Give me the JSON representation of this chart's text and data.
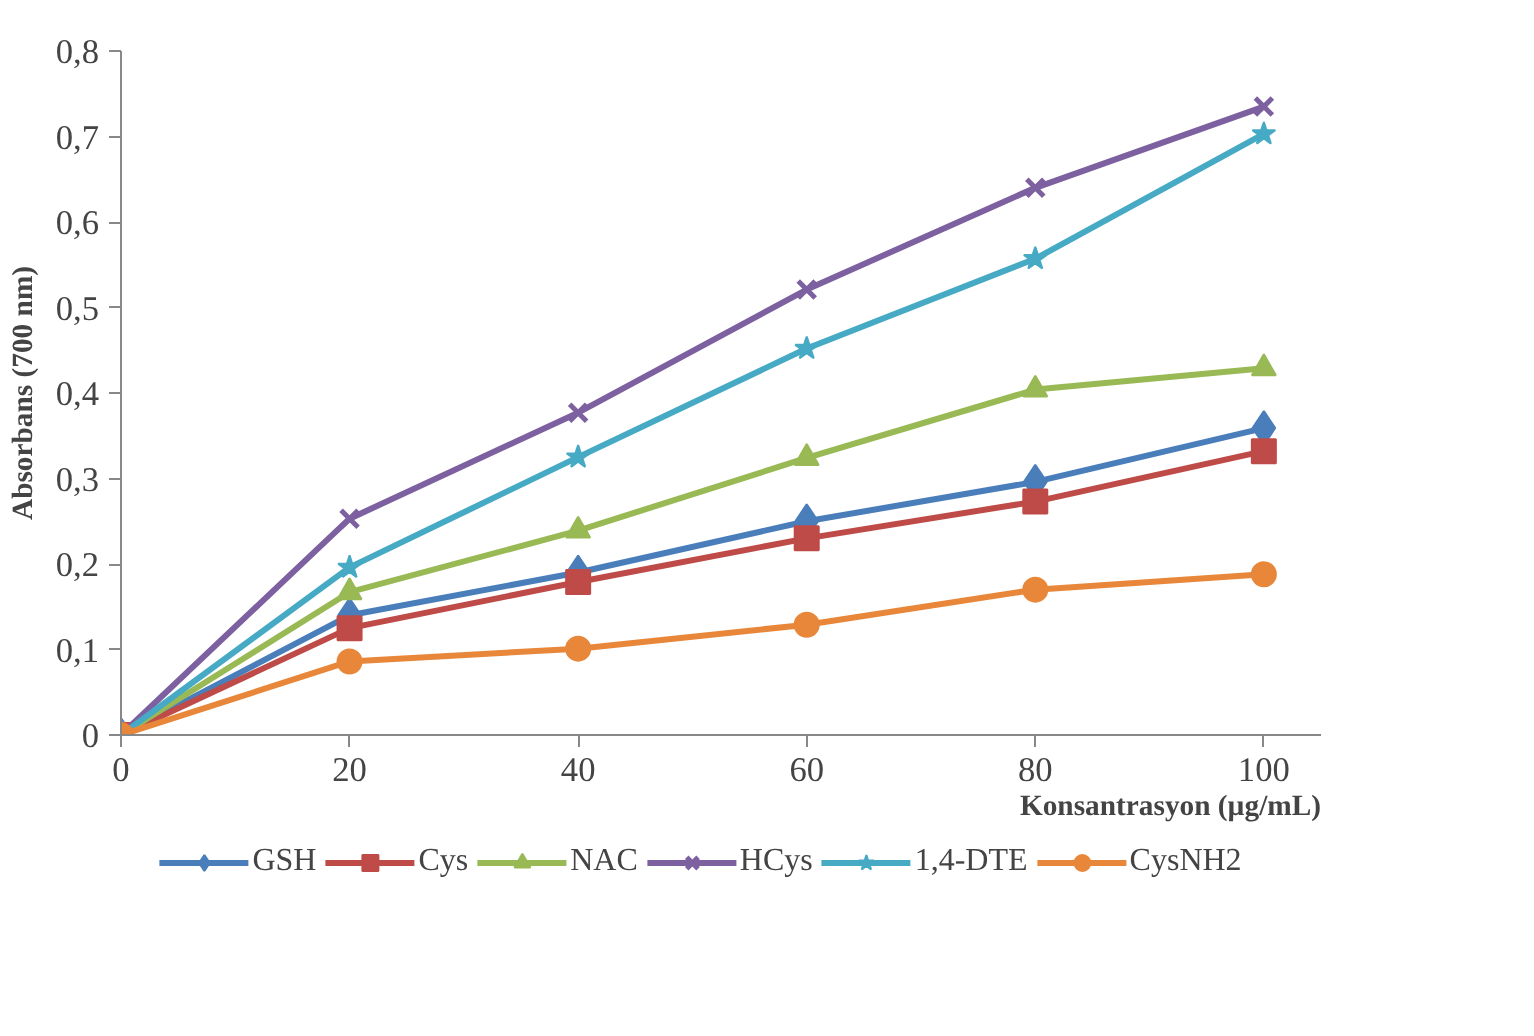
{
  "chart_data": {
    "type": "line",
    "xlabel": "Konsantrasyon (µg/mL)",
    "ylabel": "Absorbans (700 nm)",
    "x": [
      0,
      20,
      40,
      60,
      80,
      100
    ],
    "series": [
      {
        "name": "GSH",
        "color": "#4a7ebb",
        "marker": "diamond",
        "values": [
          0,
          0.14,
          0.19,
          0.25,
          0.296,
          0.359
        ]
      },
      {
        "name": "Cys",
        "color": "#be4b48",
        "marker": "square",
        "values": [
          0,
          0.125,
          0.179,
          0.23,
          0.273,
          0.332
        ]
      },
      {
        "name": "NAC",
        "color": "#98b954",
        "marker": "triangle",
        "values": [
          0,
          0.167,
          0.239,
          0.324,
          0.404,
          0.429
        ]
      },
      {
        "name": "HCys",
        "color": "#7d60a0",
        "marker": "cross",
        "values": [
          0,
          0.253,
          0.377,
          0.521,
          0.64,
          0.735
        ]
      },
      {
        "name": "1,4-DTE",
        "color": "#46aac5",
        "marker": "star",
        "values": [
          0,
          0.196,
          0.325,
          0.452,
          0.557,
          0.703
        ]
      },
      {
        "name": "CysNH2",
        "color": "#e8873a",
        "marker": "circle",
        "values": [
          0,
          0.086,
          0.101,
          0.129,
          0.17,
          0.188
        ]
      }
    ],
    "xlim": [
      0,
      105
    ],
    "xticks": [
      0,
      20,
      40,
      60,
      80,
      100
    ],
    "ylim": [
      0,
      0.8
    ],
    "yticks": [
      0,
      {
        "value": 0.1,
        "label": "0,1"
      },
      {
        "value": 0.2,
        "label": "0,2"
      },
      {
        "value": 0.3,
        "label": "0,3"
      },
      {
        "value": 0.4,
        "label": "0,4"
      },
      {
        "value": 0.5,
        "label": "0,5"
      },
      {
        "value": 0.6,
        "label": "0,6"
      },
      {
        "value": 0.7,
        "label": "0,7"
      },
      {
        "value": 0.8,
        "label": "0,8"
      }
    ],
    "grid": false,
    "legend": "bottom",
    "line_style": "solid"
  }
}
